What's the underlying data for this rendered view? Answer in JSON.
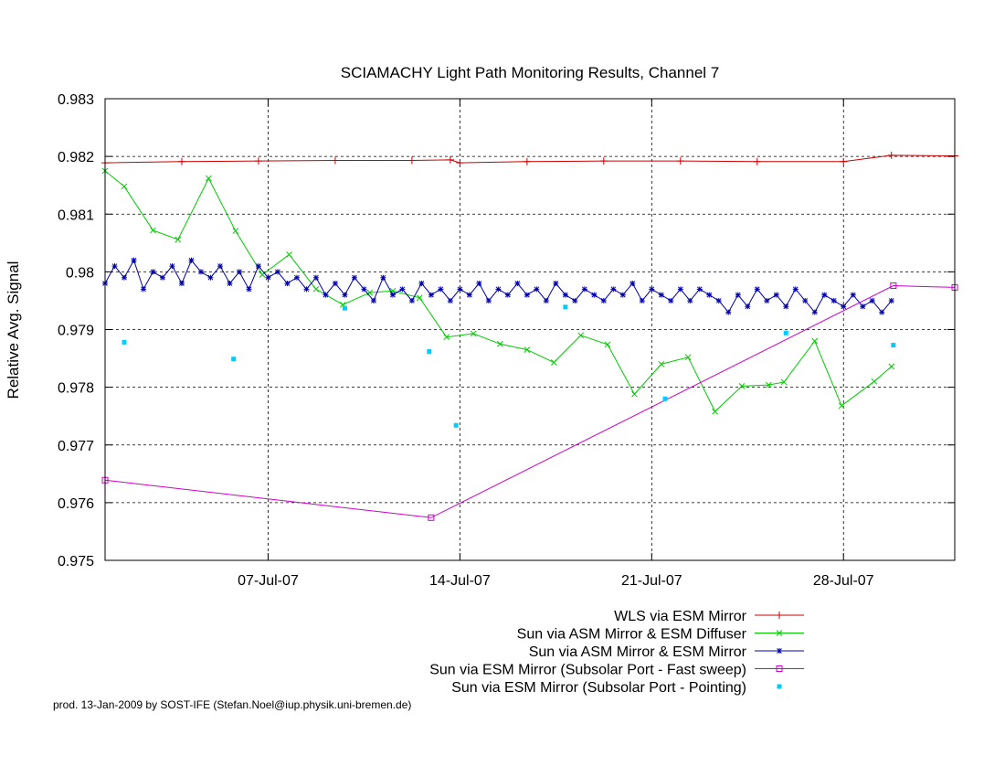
{
  "chart_data": {
    "type": "line",
    "title": "SCIAMACHY Light Path Monitoring Results, Channel 7",
    "xlabel": "",
    "ylabel": "Relative Avg. Signal",
    "xlim": [
      0,
      44.3
    ],
    "ylim": [
      0.975,
      0.983
    ],
    "x_ticks": [
      {
        "x": 8.5,
        "label": "07-Jul-07"
      },
      {
        "x": 18.5,
        "label": "14-Jul-07"
      },
      {
        "x": 28.5,
        "label": "21-Jul-07"
      },
      {
        "x": 38.5,
        "label": "28-Jul-07"
      }
    ],
    "y_ticks": [
      {
        "y": 0.975,
        "label": "0.975"
      },
      {
        "y": 0.976,
        "label": "0.976"
      },
      {
        "y": 0.977,
        "label": "0.977"
      },
      {
        "y": 0.978,
        "label": "0.978"
      },
      {
        "y": 0.979,
        "label": "0.979"
      },
      {
        "y": 0.98,
        "label": "0.98"
      },
      {
        "y": 0.981,
        "label": "0.981"
      },
      {
        "y": 0.982,
        "label": "0.982"
      },
      {
        "y": 0.983,
        "label": "0.983"
      }
    ],
    "grid": true,
    "legend_position": "bottom-right below plot",
    "series": [
      {
        "name": "WLS via ESM Mirror",
        "color": "#cc0000",
        "marker": "plus",
        "x": [
          0,
          4,
          8,
          12,
          16,
          18,
          18.5,
          22,
          26,
          30,
          34,
          38.5,
          41,
          44.3
        ],
        "y": [
          0.98189,
          0.98191,
          0.98192,
          0.98193,
          0.98193,
          0.98194,
          0.98189,
          0.98191,
          0.98192,
          0.98192,
          0.98191,
          0.98191,
          0.98202,
          0.98201
        ]
      },
      {
        "name": "Sun via ASM Mirror & ESM Diffuser",
        "color": "#00cc00",
        "marker": "cross",
        "x": [
          0,
          1,
          2.5,
          3.8,
          5.4,
          6.8,
          8.2,
          9.6,
          11,
          12.4,
          13.8,
          15,
          16.4,
          17.8,
          19.2,
          20.6,
          22,
          23.4,
          24.8,
          26.2,
          27.6,
          29,
          30.4,
          31.8,
          33.2,
          34.6,
          35.4,
          37,
          38.4,
          40.1,
          41
        ],
        "y": [
          0.98175,
          0.98148,
          0.98072,
          0.98056,
          0.98162,
          0.98071,
          0.97995,
          0.9803,
          0.9797,
          0.97943,
          0.97964,
          0.97967,
          0.97955,
          0.97887,
          0.97893,
          0.97875,
          0.97865,
          0.97843,
          0.9789,
          0.97874,
          0.97788,
          0.9784,
          0.97852,
          0.97758,
          0.97802,
          0.97804,
          0.97809,
          0.9788,
          0.97768,
          0.9781,
          0.97836
        ]
      },
      {
        "name": "Sun via ASM Mirror & ESM Mirror",
        "color": "#0000aa",
        "marker": "star",
        "x": [
          0,
          0.5,
          1,
          1.5,
          2,
          2.5,
          3,
          3.5,
          4,
          4.5,
          5,
          5.5,
          6,
          6.5,
          7,
          7.5,
          8,
          8.5,
          9,
          9.5,
          10,
          10.5,
          11,
          11.5,
          12,
          12.5,
          13,
          13.5,
          14,
          14.5,
          15,
          15.5,
          16,
          16.5,
          17,
          17.5,
          18,
          18.5,
          19,
          19.5,
          20,
          20.5,
          21,
          21.5,
          22,
          22.5,
          23,
          23.5,
          24,
          24.5,
          25,
          25.5,
          26,
          26.5,
          27,
          27.5,
          28,
          28.5,
          29,
          29.5,
          30,
          30.5,
          31,
          31.5,
          32,
          32.5,
          33,
          33.5,
          34,
          34.5,
          35,
          35.5,
          36,
          36.5,
          37,
          37.5,
          38,
          38.5,
          39,
          39.5,
          40,
          40.5,
          41
        ],
        "y": [
          0.9798,
          0.9801,
          0.9799,
          0.9802,
          0.9797,
          0.98,
          0.9799,
          0.9801,
          0.9798,
          0.9802,
          0.98,
          0.9799,
          0.9801,
          0.9798,
          0.98,
          0.9797,
          0.9801,
          0.9799,
          0.98,
          0.9798,
          0.9799,
          0.9797,
          0.9799,
          0.9796,
          0.9798,
          0.9796,
          0.9799,
          0.9797,
          0.9795,
          0.9799,
          0.9796,
          0.9797,
          0.9795,
          0.9798,
          0.9796,
          0.9797,
          0.9795,
          0.9797,
          0.9796,
          0.9798,
          0.9795,
          0.9797,
          0.9796,
          0.9798,
          0.9796,
          0.9797,
          0.9795,
          0.9798,
          0.9796,
          0.9795,
          0.9797,
          0.9796,
          0.9795,
          0.9797,
          0.9796,
          0.9798,
          0.9795,
          0.9797,
          0.9796,
          0.9795,
          0.9797,
          0.9795,
          0.9797,
          0.9796,
          0.9795,
          0.9793,
          0.9796,
          0.9794,
          0.9797,
          0.9795,
          0.9796,
          0.9794,
          0.9797,
          0.9795,
          0.9793,
          0.9796,
          0.9795,
          0.9794,
          0.9796,
          0.9794,
          0.9795,
          0.9793,
          0.9795
        ]
      },
      {
        "name": "Sun via ESM Mirror (Subsolar Port - Fast sweep)",
        "color": "#cc00cc",
        "marker": "square",
        "x": [
          0,
          17,
          41.1,
          44.3
        ],
        "y": [
          0.97639,
          0.97574,
          0.97976,
          0.97973
        ]
      },
      {
        "name": "Sun via ESM Mirror (Subsolar Port - Pointing)",
        "color": "#00ccff",
        "marker": "dot",
        "line": false,
        "x": [
          1,
          6.7,
          12.5,
          16.9,
          18.3,
          24,
          29.2,
          35.5,
          41.1
        ],
        "y": [
          0.97878,
          0.97849,
          0.97937,
          0.97862,
          0.97734,
          0.97939,
          0.9778,
          0.97894,
          0.97873
        ]
      }
    ]
  },
  "footer": "prod. 13-Jan-2009 by SOST-IFE (Stefan.Noel@iup.physik.uni-bremen.de)"
}
